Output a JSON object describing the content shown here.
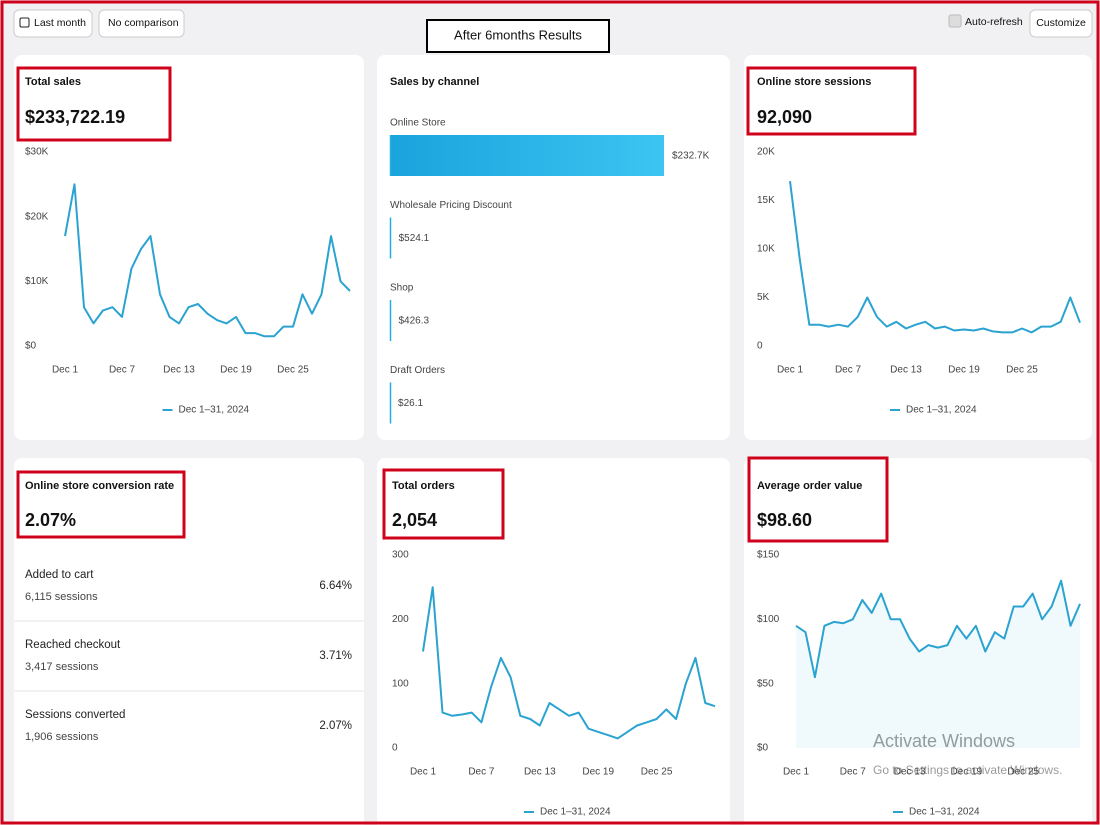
{
  "toolbar": {
    "date_button": "Last month",
    "comparison_button": "No comparison",
    "banner": "After 6months Results",
    "auto_refresh": "Auto-refresh",
    "customize": "Customize"
  },
  "total_sales": {
    "title": "Total sales",
    "value": "$233,722.19",
    "chart": {
      "type": "line",
      "x": [
        1,
        2,
        3,
        4,
        5,
        6,
        7,
        8,
        9,
        10,
        11,
        12,
        13,
        14,
        15,
        16,
        17,
        18,
        19,
        20,
        21,
        22,
        23,
        24,
        25,
        26,
        27,
        28,
        29,
        30,
        31
      ],
      "xlim": [
        1,
        31
      ],
      "xticks": [
        {
          "value": 1,
          "label": "Dec 1"
        },
        {
          "value": 7,
          "label": "Dec 7"
        },
        {
          "value": 13,
          "label": "Dec 13"
        },
        {
          "value": 19,
          "label": "Dec 19"
        },
        {
          "value": 25,
          "label": "Dec 25"
        }
      ],
      "ylim": [
        0,
        30000
      ],
      "yticks": [
        {
          "value": 0,
          "label": "$0"
        },
        {
          "value": 10000,
          "label": "$10K"
        },
        {
          "value": 20000,
          "label": "$20K"
        },
        {
          "value": 30000,
          "label": "$30K"
        }
      ],
      "series": [
        {
          "name": "Dec 1–31, 2024",
          "color": "#2ba3d1",
          "values": [
            17000,
            25000,
            6000,
            3500,
            5500,
            6000,
            4500,
            12000,
            15000,
            17000,
            8000,
            4500,
            3500,
            6000,
            6500,
            5000,
            4000,
            3500,
            4500,
            2000,
            2000,
            1500,
            1500,
            3000,
            3000,
            8000,
            5000,
            8000,
            17000,
            10000,
            8500
          ]
        }
      ]
    }
  },
  "sales_by_channel": {
    "title": "Sales by channel",
    "type": "bar",
    "color": "#22aee3",
    "categories": [
      "Online Store",
      "Wholesale Pricing Discount",
      "Shop",
      "Draft Orders"
    ],
    "values": [
      232700,
      524.1,
      426.3,
      26.1
    ],
    "value_labels": [
      "$232.7K",
      "$524.1",
      "$426.3",
      "$26.1"
    ]
  },
  "sessions": {
    "title": "Online store sessions",
    "value": "92,090",
    "chart": {
      "type": "line",
      "x": [
        1,
        2,
        3,
        4,
        5,
        6,
        7,
        8,
        9,
        10,
        11,
        12,
        13,
        14,
        15,
        16,
        17,
        18,
        19,
        20,
        21,
        22,
        23,
        24,
        25,
        26,
        27,
        28,
        29,
        30,
        31
      ],
      "xlim": [
        1,
        31
      ],
      "xticks": [
        {
          "value": 1,
          "label": "Dec 1"
        },
        {
          "value": 7,
          "label": "Dec 7"
        },
        {
          "value": 13,
          "label": "Dec 13"
        },
        {
          "value": 19,
          "label": "Dec 19"
        },
        {
          "value": 25,
          "label": "Dec 25"
        }
      ],
      "ylim": [
        0,
        20000
      ],
      "yticks": [
        0,
        {
          "value": 5000,
          "label": "5K"
        },
        {
          "value": 10000,
          "label": "10K"
        },
        {
          "value": 15000,
          "label": "15K"
        },
        {
          "value": 20000,
          "label": "20K"
        }
      ],
      "series": [
        {
          "name": "Dec 1–31, 2024",
          "color": "#2ba3d1",
          "values": [
            17000,
            9000,
            2200,
            2200,
            2000,
            2200,
            2000,
            3000,
            5000,
            3000,
            2000,
            2500,
            1800,
            2200,
            2500,
            1800,
            2000,
            1600,
            1700,
            1600,
            1800,
            1500,
            1400,
            1400,
            1800,
            1400,
            2000,
            2000,
            2500,
            5000,
            2400
          ]
        }
      ]
    }
  },
  "conversion": {
    "title": "Online store conversion rate",
    "value": "2.07%",
    "steps": [
      {
        "label": "Added to cart",
        "sessions": "6,115 sessions",
        "value": 6.64,
        "value_label": "6.64%"
      },
      {
        "label": "Reached checkout",
        "sessions": "3,417 sessions",
        "value": 3.71,
        "value_label": "3.71%"
      },
      {
        "label": "Sessions converted",
        "sessions": "1,906 sessions",
        "value": 2.07,
        "value_label": "2.07%"
      }
    ]
  },
  "orders": {
    "title": "Total orders",
    "value": "2,054",
    "chart": {
      "type": "line",
      "x": [
        1,
        2,
        3,
        4,
        5,
        6,
        7,
        8,
        9,
        10,
        11,
        12,
        13,
        14,
        15,
        16,
        17,
        18,
        19,
        20,
        21,
        22,
        23,
        24,
        25,
        26,
        27,
        28,
        29,
        30,
        31
      ],
      "xlim": [
        1,
        31
      ],
      "xticks": [
        {
          "value": 1,
          "label": "Dec 1"
        },
        {
          "value": 7,
          "label": "Dec 7"
        },
        {
          "value": 13,
          "label": "Dec 13"
        },
        {
          "value": 19,
          "label": "Dec 19"
        },
        {
          "value": 25,
          "label": "Dec 25"
        }
      ],
      "ylim": [
        0,
        300
      ],
      "yticks": [
        0,
        100,
        200,
        300
      ],
      "series": [
        {
          "name": "Dec 1–31, 2024",
          "color": "#2ba3d1",
          "values": [
            150,
            250,
            55,
            50,
            52,
            55,
            40,
            95,
            140,
            110,
            50,
            45,
            35,
            70,
            60,
            50,
            55,
            30,
            25,
            20,
            15,
            25,
            35,
            40,
            45,
            60,
            45,
            100,
            140,
            70,
            65
          ]
        }
      ]
    }
  },
  "aov": {
    "title": "Average order value",
    "value": "$98.60",
    "chart": {
      "type": "area",
      "x": [
        1,
        2,
        3,
        4,
        5,
        6,
        7,
        8,
        9,
        10,
        11,
        12,
        13,
        14,
        15,
        16,
        17,
        18,
        19,
        20,
        21,
        22,
        23,
        24,
        25,
        26,
        27,
        28,
        29,
        30,
        31
      ],
      "xlim": [
        1,
        31
      ],
      "xticks": [
        {
          "value": 1,
          "label": "Dec 1"
        },
        {
          "value": 7,
          "label": "Dec 7"
        },
        {
          "value": 13,
          "label": "Dec 13"
        },
        {
          "value": 19,
          "label": "Dec 19"
        },
        {
          "value": 25,
          "label": "Dec 25"
        }
      ],
      "ylim": [
        0,
        150
      ],
      "yticks": [
        {
          "value": 0,
          "label": "$0"
        },
        {
          "value": 50,
          "label": "$50"
        },
        {
          "value": 100,
          "label": "$100"
        },
        {
          "value": 150,
          "label": "$150"
        }
      ],
      "series": [
        {
          "name": "Dec 1–31, 2024",
          "color": "#2ba3d1",
          "values": [
            95,
            90,
            55,
            95,
            98,
            97,
            100,
            115,
            105,
            120,
            100,
            100,
            85,
            75,
            80,
            78,
            80,
            95,
            85,
            95,
            75,
            90,
            85,
            110,
            110,
            120,
            100,
            110,
            130,
            95,
            112
          ]
        }
      ]
    }
  },
  "watermark": {
    "title": "Activate Windows",
    "subtitle": "Go to Settings to activate Windows."
  }
}
